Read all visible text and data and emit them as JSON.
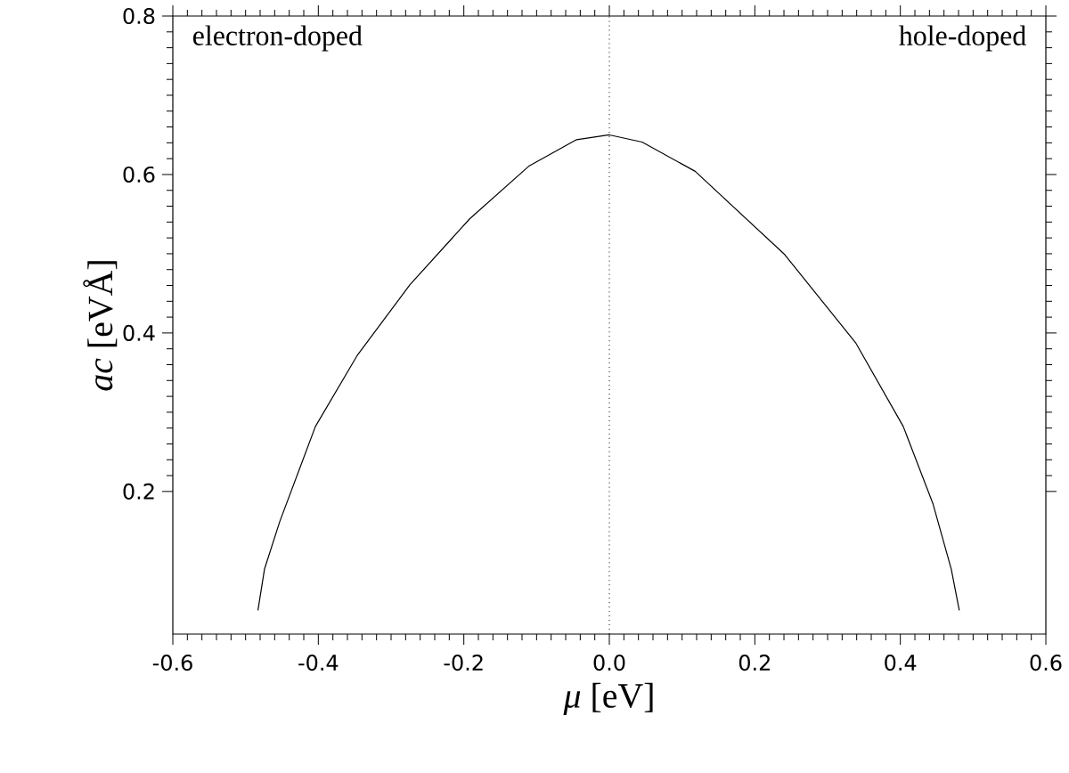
{
  "chart_data": {
    "type": "line",
    "xlabel": "*μ* [eV]",
    "ylabel": "*ac* [eVÅ]",
    "x": [
      -0.483,
      -0.474,
      -0.453,
      -0.404,
      -0.347,
      -0.274,
      -0.192,
      -0.11,
      -0.045,
      0,
      0.045,
      0.118,
      0.241,
      0.339,
      0.404,
      0.445,
      0.47,
      0.481
    ],
    "series": [
      {
        "color": "#000000",
        "values": [
          0.05,
          0.102,
          0.162,
          0.282,
          0.371,
          0.461,
          0.544,
          0.611,
          0.644,
          0.65,
          0.641,
          0.604,
          0.499,
          0.387,
          0.282,
          0.184,
          0.102,
          0.05
        ]
      }
    ],
    "xlim": [
      -0.6,
      0.6
    ],
    "ylim": [
      0.02,
      0.8
    ],
    "xticks": [
      -0.6,
      -0.4,
      -0.2,
      {
        "value": 0,
        "label": "0.0"
      },
      0.2,
      0.4,
      0.6
    ],
    "yticks": [
      0.2,
      0.4,
      0.6,
      0.8
    ],
    "ref_lines": [
      {
        "axis": "x",
        "value": 0,
        "line_style": "dotted",
        "color": "#000000"
      }
    ],
    "annotations": [
      "electron-doped",
      "hole-doped"
    ]
  }
}
